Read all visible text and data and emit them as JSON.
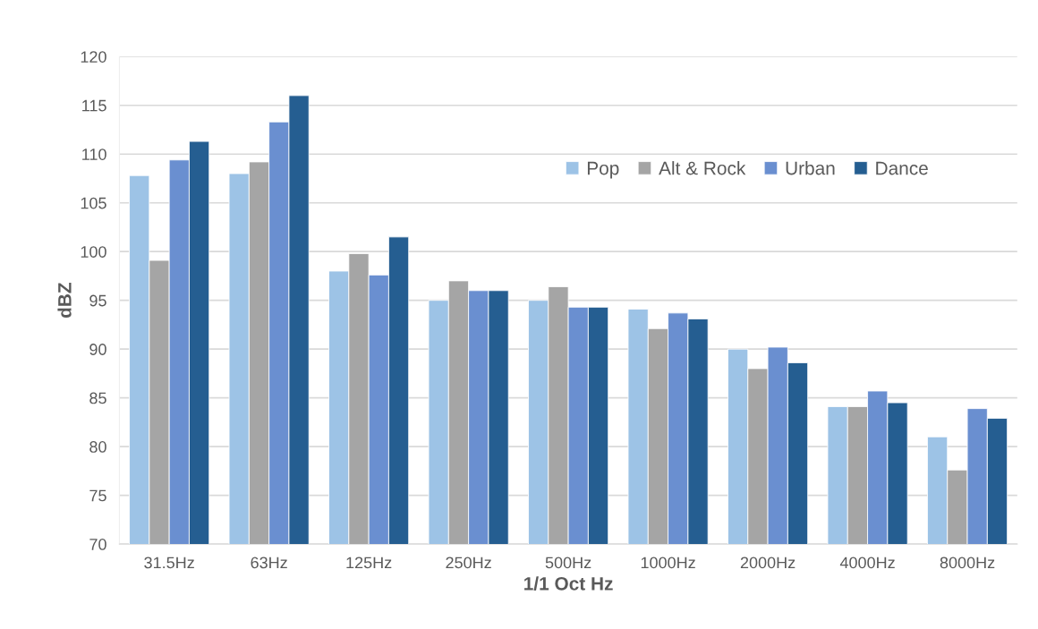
{
  "chart_data": {
    "type": "bar",
    "xlabel": "1/1 Oct Hz",
    "ylabel": "dBZ",
    "categories": [
      "31.5Hz",
      "63Hz",
      "125Hz",
      "250Hz",
      "500Hz",
      "1000Hz",
      "2000Hz",
      "4000Hz",
      "8000Hz"
    ],
    "series": [
      {
        "name": "Pop",
        "color": "#9dc3e6",
        "values": [
          107.8,
          108,
          98,
          95,
          95,
          94.1,
          90,
          84.1,
          81
        ]
      },
      {
        "name": "Alt & Rock",
        "color": "#a5a5a5",
        "values": [
          99.1,
          109.2,
          99.8,
          97,
          96.4,
          92.1,
          88,
          84.1,
          77.6
        ]
      },
      {
        "name": "Urban",
        "color": "#6a8fd0",
        "values": [
          109.4,
          113.3,
          97.6,
          96,
          94.3,
          93.7,
          90.2,
          85.7,
          83.9
        ]
      },
      {
        "name": "Dance",
        "color": "#255e91",
        "values": [
          111.3,
          116,
          101.5,
          96,
          94.3,
          93.1,
          88.6,
          84.5,
          82.9
        ]
      }
    ],
    "ylim": [
      70,
      120
    ],
    "yticks": [
      70,
      75,
      80,
      85,
      90,
      95,
      100,
      105,
      110,
      115,
      120
    ],
    "grid": "y",
    "legend": "top right"
  }
}
